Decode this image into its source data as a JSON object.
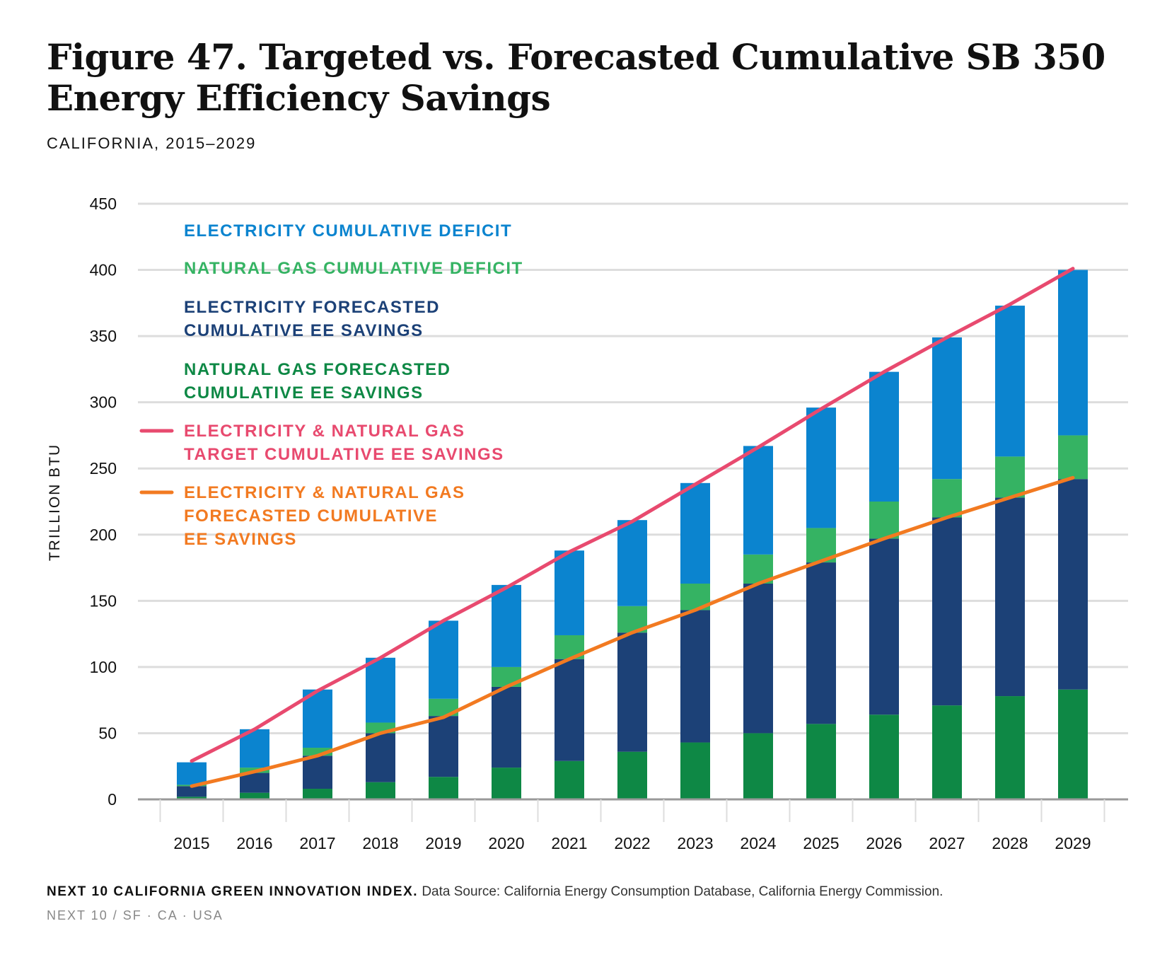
{
  "header": {
    "title_line1": "Figure 47. Targeted vs. Forecasted Cumulative SB 350",
    "title_line2": "Energy Efficiency Savings",
    "subtitle": "CALIFORNIA, 2015–2029"
  },
  "footer": {
    "org": "NEXT 10 CALIFORNIA GREEN INNOVATION INDEX.",
    "source": "Data Source: California Energy Consumption Database, California Energy Commission.",
    "credit": "NEXT 10  /  SF · CA · USA"
  },
  "colors": {
    "elec_deficit": "#0B84CF",
    "gas_deficit": "#35B363",
    "elec_forecast": "#1C4177",
    "gas_forecast": "#0E8845",
    "target_line": "#E84A6F",
    "forecast_line": "#F27A21",
    "grid": "#DDDDDD",
    "axis": "#999999"
  },
  "chart_data": {
    "type": "bar",
    "stacked": true,
    "ylabel": "TRILLION BTU",
    "ylim": [
      0,
      450
    ],
    "yticks": [
      0,
      50,
      100,
      150,
      200,
      250,
      300,
      350,
      400,
      450
    ],
    "grid": true,
    "legend_position": "top-left",
    "categories": [
      "2015",
      "2016",
      "2017",
      "2018",
      "2019",
      "2020",
      "2021",
      "2022",
      "2023",
      "2024",
      "2025",
      "2026",
      "2027",
      "2028",
      "2029"
    ],
    "series": [
      {
        "name": "NATURAL GAS FORECASTED CUMULATIVE EE SAVINGS",
        "legend_lines": [
          "NATURAL GAS FORECASTED",
          "CUMULATIVE EE SAVINGS"
        ],
        "type": "bar",
        "color_key": "gas_forecast",
        "values": [
          2,
          5,
          8,
          13,
          17,
          24,
          29,
          36,
          43,
          50,
          57,
          64,
          71,
          78,
          83
        ]
      },
      {
        "name": "ELECTRICITY FORECASTED CUMULATIVE EE SAVINGS",
        "legend_lines": [
          "ELECTRICITY FORECASTED",
          "CUMULATIVE EE SAVINGS"
        ],
        "type": "bar",
        "color_key": "elec_forecast",
        "values": [
          8,
          15,
          25,
          37,
          46,
          61,
          77,
          90,
          100,
          113,
          122,
          133,
          142,
          150,
          159
        ]
      },
      {
        "name": "NATURAL GAS CUMULATIVE DEFICIT",
        "legend_lines": [
          "NATURAL GAS CUMULATIVE DEFICIT"
        ],
        "type": "bar",
        "color_key": "gas_deficit",
        "values": [
          1,
          4,
          6,
          8,
          13,
          15,
          18,
          20,
          20,
          22,
          26,
          28,
          29,
          31,
          33
        ]
      },
      {
        "name": "ELECTRICITY CUMULATIVE DEFICIT",
        "legend_lines": [
          "ELECTRICITY CUMULATIVE DEFICIT"
        ],
        "type": "bar",
        "color_key": "elec_deficit",
        "values": [
          17,
          29,
          44,
          49,
          59,
          62,
          64,
          65,
          76,
          82,
          91,
          98,
          107,
          114,
          125
        ]
      },
      {
        "name": "ELECTRICITY & NATURAL GAS TARGET CUMULATIVE EE SAVINGS",
        "legend_lines": [
          "ELECTRICITY & NATURAL GAS",
          "TARGET CUMULATIVE EE SAVINGS"
        ],
        "type": "line",
        "color_key": "target_line",
        "values": [
          29,
          53,
          82,
          107,
          135,
          160,
          187,
          210,
          238,
          266,
          295,
          323,
          349,
          374,
          401
        ]
      },
      {
        "name": "ELECTRICITY & NATURAL GAS FORECASTED CUMULATIVE EE SAVINGS",
        "legend_lines": [
          "ELECTRICITY & NATURAL GAS",
          "FORECASTED CUMULATIVE",
          "EE SAVINGS"
        ],
        "type": "line",
        "color_key": "forecast_line",
        "values": [
          10,
          21,
          33,
          50,
          62,
          85,
          106,
          126,
          143,
          163,
          180,
          197,
          213,
          228,
          243
        ]
      }
    ]
  }
}
